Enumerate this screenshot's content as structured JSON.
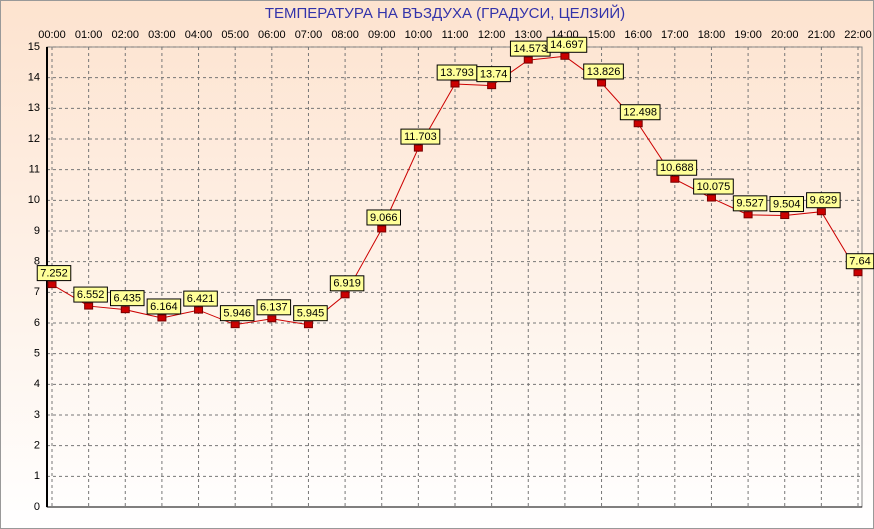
{
  "chart_data": {
    "type": "line",
    "title": "ТЕМПЕРАТУРА НА ВЪЗДУХА  (ГРАДУСИ, ЦЕЛЗИЙ)",
    "categories": [
      "00:00",
      "01:00",
      "02:00",
      "03:00",
      "04:00",
      "05:00",
      "06:00",
      "07:00",
      "08:00",
      "09:00",
      "10:00",
      "11:00",
      "12:00",
      "13:00",
      "14:00",
      "15:00",
      "16:00",
      "17:00",
      "18:00",
      "19:00",
      "20:00",
      "21:00",
      "22:00"
    ],
    "values": [
      7.252,
      6.552,
      6.435,
      6.164,
      6.421,
      5.946,
      6.137,
      5.945,
      6.919,
      9.066,
      11.703,
      13.793,
      13.74,
      14.573,
      14.697,
      13.826,
      12.498,
      10.688,
      10.075,
      9.527,
      9.504,
      9.629,
      7.64
    ],
    "color": "#cc0000",
    "ylim": [
      0,
      15
    ],
    "yticks": [
      0,
      1,
      2,
      3,
      4,
      5,
      6,
      7,
      8,
      9,
      10,
      11,
      12,
      13,
      14,
      15
    ],
    "grid": true
  }
}
